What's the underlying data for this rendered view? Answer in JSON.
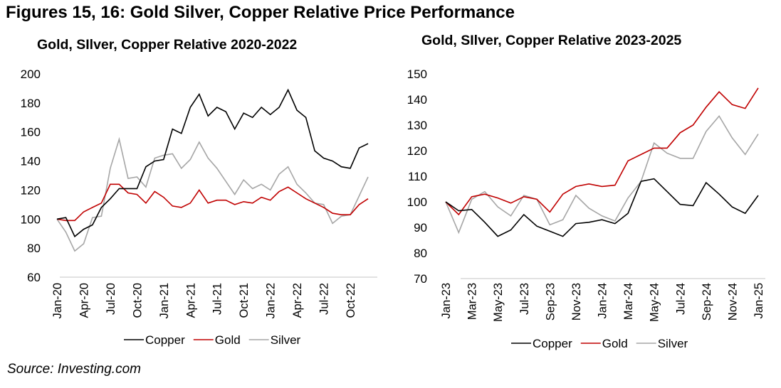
{
  "figure_title": "Figures 15, 16: Gold Silver, Copper Relative Price Performance",
  "source": "Source: Investing.com",
  "colors": {
    "copper": "#000000",
    "gold": "#c00000",
    "silver": "#a6a6a6",
    "axis": "#d9d9d9"
  },
  "chart_data": [
    {
      "type": "line",
      "title": "Gold, SIlver, Copper Relative 2020-2022",
      "xlabel": "",
      "ylabel": "",
      "ylim": [
        60,
        200
      ],
      "yticks": [
        60,
        80,
        100,
        120,
        140,
        160,
        180,
        200
      ],
      "x": [
        "Jan-20",
        "Feb-20",
        "Mar-20",
        "Apr-20",
        "May-20",
        "Jun-20",
        "Jul-20",
        "Aug-20",
        "Sep-20",
        "Oct-20",
        "Nov-20",
        "Dec-20",
        "Jan-21",
        "Feb-21",
        "Mar-21",
        "Apr-21",
        "May-21",
        "Jun-21",
        "Jul-21",
        "Aug-21",
        "Sep-21",
        "Oct-21",
        "Nov-21",
        "Dec-21",
        "Jan-22",
        "Feb-22",
        "Mar-22",
        "Apr-22",
        "May-22",
        "Jun-22",
        "Jul-22",
        "Aug-22",
        "Sep-22",
        "Oct-22",
        "Nov-22",
        "Dec-22"
      ],
      "xtick_labels": [
        "Jan-20",
        "Apr-20",
        "Jul-20",
        "Oct-20",
        "Jan-21",
        "Apr-21",
        "Jul-21",
        "Oct-21",
        "Jan-22",
        "Apr-22",
        "Jul-22",
        "Oct-22"
      ],
      "xtick_every": 3,
      "grid": false,
      "legend": "bottom",
      "series": [
        {
          "name": "Copper",
          "color_key": "copper",
          "values": [
            100,
            101,
            88,
            93,
            96,
            108,
            114,
            121,
            121,
            121,
            136,
            140,
            141,
            162,
            159,
            177,
            186,
            171,
            177,
            174,
            162,
            173,
            170,
            177,
            172,
            177,
            189,
            175,
            170,
            147,
            142,
            140,
            136,
            135,
            149,
            152
          ]
        },
        {
          "name": "Gold",
          "color_key": "gold",
          "values": [
            100,
            99,
            99,
            105,
            108,
            111,
            124,
            124,
            118,
            117,
            111,
            119,
            115,
            109,
            108,
            111,
            120,
            111,
            113,
            113,
            110,
            112,
            111,
            115,
            113,
            119,
            122,
            118,
            114,
            111,
            108,
            104,
            103,
            103,
            110,
            114
          ]
        },
        {
          "name": "Silver",
          "color_key": "silver",
          "values": [
            100,
            91,
            78,
            83,
            101,
            102,
            135,
            155,
            128,
            129,
            122,
            142,
            144,
            145,
            135,
            141,
            153,
            142,
            135,
            126,
            117,
            127,
            121,
            124,
            120,
            131,
            136,
            124,
            118,
            111,
            110,
            97,
            102,
            103,
            116,
            129
          ]
        }
      ]
    },
    {
      "type": "line",
      "title": "Gold, SIlver, Copper Relative 2023-2025",
      "xlabel": "",
      "ylabel": "",
      "ylim": [
        70,
        150
      ],
      "yticks": [
        70,
        80,
        90,
        100,
        110,
        120,
        130,
        140,
        150
      ],
      "x": [
        "Jan-23",
        "Feb-23",
        "Mar-23",
        "Apr-23",
        "May-23",
        "Jun-23",
        "Jul-23",
        "Aug-23",
        "Sep-23",
        "Oct-23",
        "Nov-23",
        "Dec-23",
        "Jan-24",
        "Feb-24",
        "Mar-24",
        "Apr-24",
        "May-24",
        "Jun-24",
        "Jul-24",
        "Aug-24",
        "Sep-24",
        "Oct-24",
        "Nov-24",
        "Dec-24",
        "Jan-25"
      ],
      "xtick_labels": [
        "Jan-23",
        "Mar-23",
        "May-23",
        "Jul-23",
        "Sep-23",
        "Nov-23",
        "Jan-24",
        "Mar-24",
        "May-24",
        "Jul-24",
        "Sep-24",
        "Nov-24",
        "Jan-25"
      ],
      "xtick_every": 2,
      "grid": false,
      "legend": "bottom",
      "series": [
        {
          "name": "Copper",
          "color_key": "copper",
          "values": [
            100,
            96.5,
            97,
            92,
            86.5,
            89,
            95,
            90.5,
            88.5,
            86.5,
            91.5,
            92,
            93,
            91.5,
            95.5,
            108,
            109,
            104,
            99,
            98.5,
            107.5,
            103,
            98,
            95.5,
            102.5
          ]
        },
        {
          "name": "Gold",
          "color_key": "gold",
          "values": [
            100,
            95,
            102,
            103,
            101.5,
            99.5,
            102,
            101,
            96,
            103,
            106,
            107,
            106,
            106.5,
            116,
            118.5,
            121,
            121,
            127,
            130,
            137,
            143,
            138,
            136.5,
            144.5
          ]
        },
        {
          "name": "Silver",
          "color_key": "silver",
          "values": [
            100,
            88,
            101,
            104,
            98,
            94.5,
            102.5,
            101,
            91,
            93,
            102.5,
            97.5,
            94.5,
            92.5,
            101.5,
            108,
            123,
            119,
            117,
            117,
            127.5,
            133.5,
            125,
            118.5,
            126.5
          ]
        }
      ]
    }
  ]
}
